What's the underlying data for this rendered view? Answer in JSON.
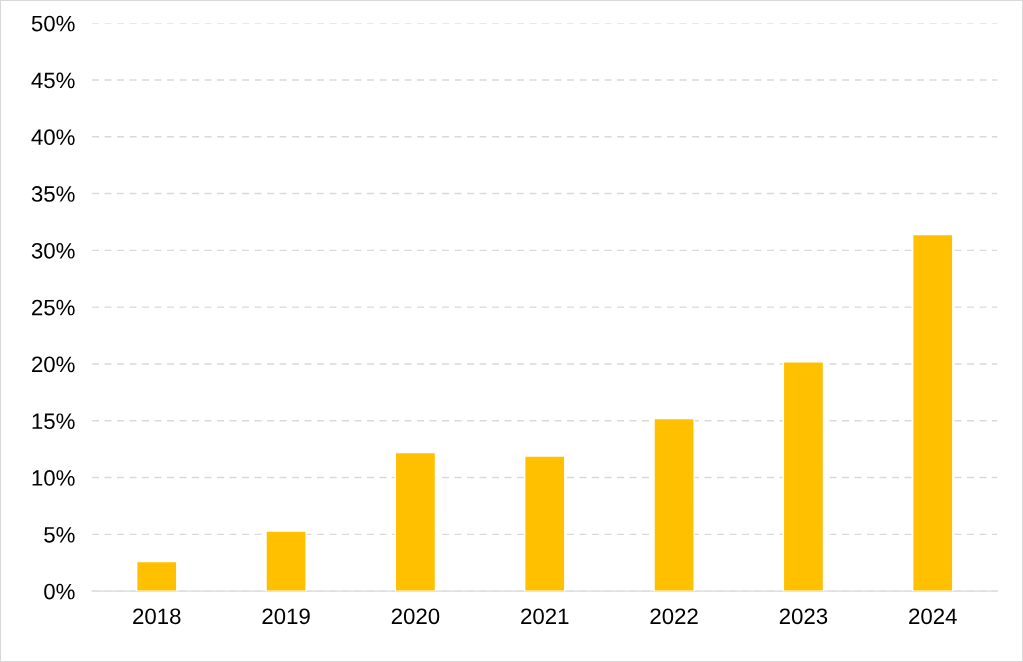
{
  "chart_data": {
    "type": "bar",
    "categories": [
      "2018",
      "2019",
      "2020",
      "2021",
      "2022",
      "2023",
      "2024"
    ],
    "values": [
      2.6,
      5.3,
      12.2,
      11.9,
      15.2,
      20.2,
      31.4
    ],
    "color": "#ffc000",
    "ylim": [
      0,
      50
    ],
    "yticks": [
      {
        "value": 0,
        "label": "0%"
      },
      {
        "value": 5,
        "label": "5%"
      },
      {
        "value": 10,
        "label": "10%"
      },
      {
        "value": 15,
        "label": "15%"
      },
      {
        "value": 20,
        "label": "20%"
      },
      {
        "value": 25,
        "label": "25%"
      },
      {
        "value": 30,
        "label": "30%"
      },
      {
        "value": 35,
        "label": "35%"
      },
      {
        "value": 40,
        "label": "40%"
      },
      {
        "value": 45,
        "label": "45%"
      },
      {
        "value": 50,
        "label": "50%"
      }
    ],
    "grid": "y",
    "line_style": "dashed"
  }
}
